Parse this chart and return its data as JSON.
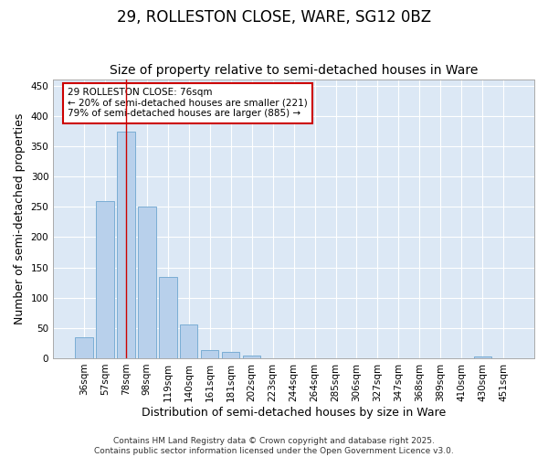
{
  "title": "29, ROLLESTON CLOSE, WARE, SG12 0BZ",
  "subtitle": "Size of property relative to semi-detached houses in Ware",
  "xlabel": "Distribution of semi-detached houses by size in Ware",
  "ylabel": "Number of semi-detached properties",
  "bar_labels": [
    "36sqm",
    "57sqm",
    "78sqm",
    "98sqm",
    "119sqm",
    "140sqm",
    "161sqm",
    "181sqm",
    "202sqm",
    "223sqm",
    "244sqm",
    "264sqm",
    "285sqm",
    "306sqm",
    "327sqm",
    "347sqm",
    "368sqm",
    "389sqm",
    "410sqm",
    "430sqm",
    "451sqm"
  ],
  "bar_values": [
    35,
    259,
    374,
    251,
    134,
    56,
    14,
    10,
    4,
    0,
    0,
    0,
    0,
    0,
    0,
    0,
    0,
    0,
    0,
    3,
    0
  ],
  "bar_color": "#b8d0eb",
  "bar_edge_color": "#7aadd4",
  "background_color": "#dce8f5",
  "grid_color": "#ffffff",
  "fig_background": "#ffffff",
  "ylim": [
    0,
    460
  ],
  "yticks": [
    0,
    50,
    100,
    150,
    200,
    250,
    300,
    350,
    400,
    450
  ],
  "property_line_x": 2,
  "property_line_color": "#cc0000",
  "annotation_text": "29 ROLLESTON CLOSE: 76sqm\n← 20% of semi-detached houses are smaller (221)\n79% of semi-detached houses are larger (885) →",
  "annotation_box_color": "#cc0000",
  "footer_text": "Contains HM Land Registry data © Crown copyright and database right 2025.\nContains public sector information licensed under the Open Government Licence v3.0.",
  "title_fontsize": 12,
  "subtitle_fontsize": 10,
  "axis_label_fontsize": 9,
  "tick_fontsize": 7.5,
  "annotation_fontsize": 7.5,
  "footer_fontsize": 6.5
}
